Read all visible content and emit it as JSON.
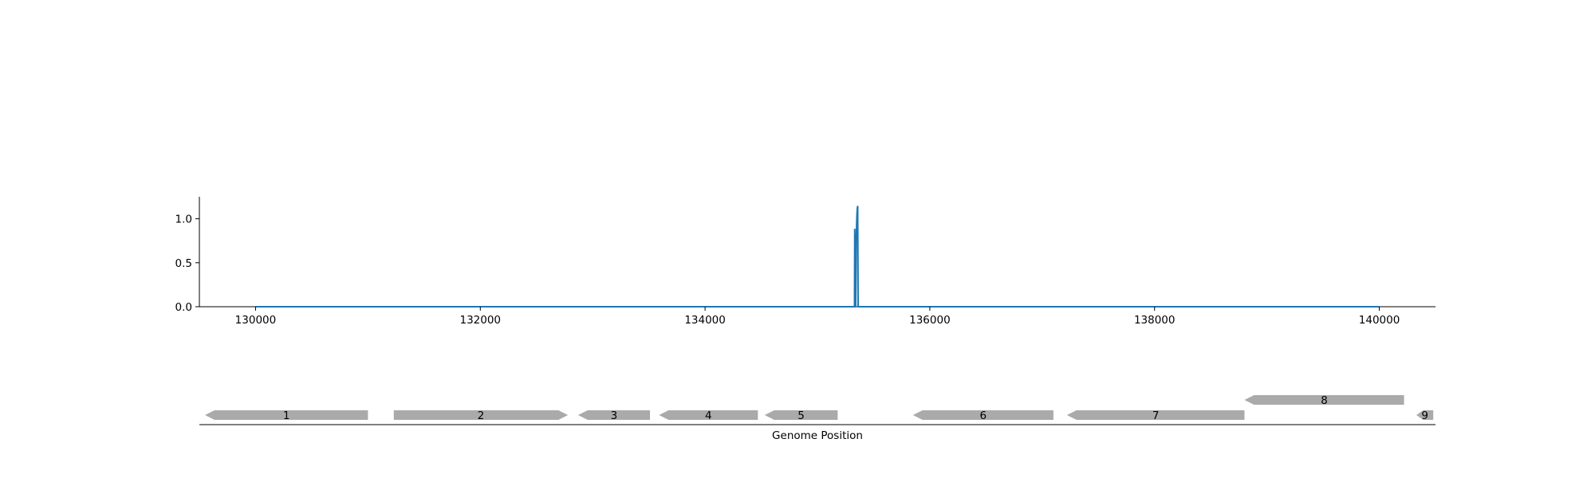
{
  "chart_data": {
    "type": "line",
    "title": "",
    "xlabel": "Genome Position",
    "ylabel": "",
    "xlim": [
      129500,
      140500
    ],
    "ylim": [
      0,
      1.25
    ],
    "x_ticks": [
      130000,
      132000,
      134000,
      136000,
      138000,
      140000
    ],
    "x_tick_labels": [
      "130000",
      "132000",
      "134000",
      "136000",
      "138000",
      "140000"
    ],
    "y_ticks": [
      0.0,
      0.5,
      1.0
    ],
    "y_tick_labels": [
      "0.0",
      "0.5",
      "1.0"
    ],
    "grid": false,
    "line_color": "#1f77b4",
    "gene_color": "#aaaaaa",
    "series": [
      {
        "x": [
          130000,
          135320,
          135330,
          135332,
          135336,
          135340,
          135345,
          135350,
          135352,
          135354,
          135356,
          135358,
          135362,
          135365,
          135370,
          140000
        ],
        "y": [
          0.0,
          0.0,
          0.0,
          0.88,
          0.0,
          0.0,
          0.75,
          0.98,
          1.05,
          1.1,
          1.13,
          1.14,
          0.0,
          0.0,
          0.0,
          0.0
        ]
      }
    ],
    "genes": [
      {
        "label": "1",
        "start": 129550,
        "end": 131000,
        "strand": "-",
        "row": 0
      },
      {
        "label": "2",
        "start": 131230,
        "end": 132780,
        "strand": "+",
        "row": 0
      },
      {
        "label": "3",
        "start": 132870,
        "end": 133510,
        "strand": "-",
        "row": 0
      },
      {
        "label": "4",
        "start": 133590,
        "end": 134470,
        "strand": "-",
        "row": 0
      },
      {
        "label": "5",
        "start": 134530,
        "end": 135180,
        "strand": "-",
        "row": 0
      },
      {
        "label": "6",
        "start": 135850,
        "end": 137100,
        "strand": "-",
        "row": 0
      },
      {
        "label": "7",
        "start": 137220,
        "end": 138800,
        "strand": "-",
        "row": 0
      },
      {
        "label": "8",
        "start": 138800,
        "end": 140220,
        "strand": "-",
        "row": 1
      },
      {
        "label": "9",
        "start": 140330,
        "end": 140480,
        "strand": "-",
        "row": 0
      }
    ]
  }
}
